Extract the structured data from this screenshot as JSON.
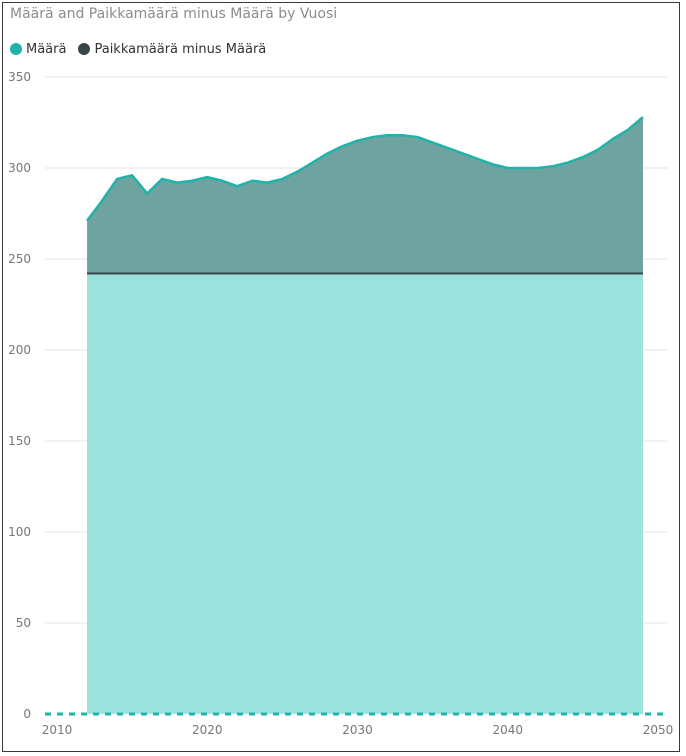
{
  "title": "Määrä and Paikkamäärä minus Määrä by Vuosi",
  "colors": {
    "maara_line": "#1fb3aa",
    "maara_fill": "#9be2dc",
    "diff_fill": "#6fa39f",
    "diff_line": "#374649",
    "grid": "#e6e6e6"
  },
  "chart_data": {
    "type": "area",
    "title": "Määrä and Paikkamäärä minus Määrä by Vuosi",
    "xlabel": "",
    "ylabel": "",
    "xlim": [
      2010,
      2050
    ],
    "ylim": [
      0,
      350
    ],
    "x_ticks": [
      "2010",
      "2020",
      "2030",
      "2040",
      "2050"
    ],
    "y_ticks": [
      "0",
      "50",
      "100",
      "150",
      "200",
      "250",
      "300",
      "350"
    ],
    "grid": true,
    "legend_position": "top-left",
    "series": [
      {
        "name": "Määrä",
        "color": "#1fb3aa",
        "x": [
          2012,
          2013,
          2014,
          2015,
          2016,
          2017,
          2018,
          2019,
          2020,
          2021,
          2022,
          2023,
          2024,
          2025,
          2026,
          2027,
          2028,
          2029,
          2030,
          2031,
          2032,
          2033,
          2034,
          2035,
          2036,
          2037,
          2038,
          2039,
          2040,
          2041,
          2042,
          2043,
          2044,
          2045,
          2046,
          2047,
          2048,
          2049
        ],
        "values": [
          242,
          242,
          242,
          242,
          242,
          242,
          242,
          242,
          242,
          242,
          242,
          242,
          242,
          242,
          242,
          242,
          242,
          242,
          242,
          242,
          242,
          242,
          242,
          242,
          242,
          242,
          242,
          242,
          242,
          242,
          242,
          242,
          242,
          242,
          242,
          242,
          242,
          242
        ]
      },
      {
        "name": "Paikkamäärä minus Määrä",
        "color": "#374649",
        "x": [
          2012,
          2013,
          2014,
          2015,
          2016,
          2017,
          2018,
          2019,
          2020,
          2021,
          2022,
          2023,
          2024,
          2025,
          2026,
          2027,
          2028,
          2029,
          2030,
          2031,
          2032,
          2033,
          2034,
          2035,
          2036,
          2037,
          2038,
          2039,
          2040,
          2041,
          2042,
          2043,
          2044,
          2045,
          2046,
          2047,
          2048,
          2049
        ],
        "values": [
          29,
          40,
          52,
          54,
          44,
          52,
          50,
          51,
          53,
          51,
          48,
          51,
          50,
          52,
          56,
          61,
          66,
          70,
          73,
          75,
          76,
          76,
          75,
          72,
          69,
          66,
          63,
          60,
          58,
          58,
          58,
          59,
          61,
          64,
          68,
          74,
          79,
          86
        ]
      }
    ]
  }
}
